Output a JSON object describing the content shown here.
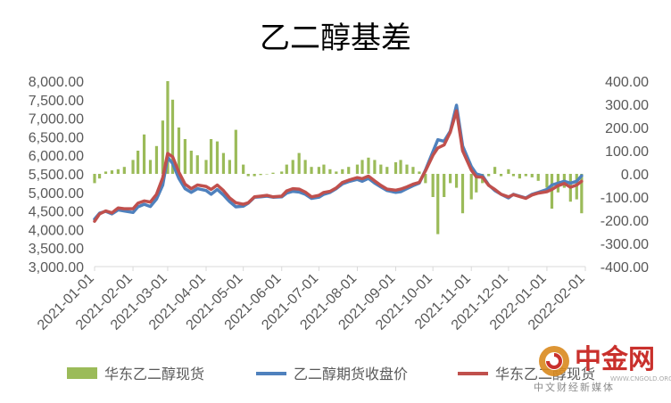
{
  "chart_data": {
    "type": "bar+line",
    "title": "乙二醇基差",
    "x_ticks": [
      "2021-01-01",
      "2021-02-01",
      "2021-03-01",
      "2021-04-01",
      "2021-05-01",
      "2021-06-01",
      "2021-07-01",
      "2021-08-01",
      "2021-09-01",
      "2021-10-01",
      "2021-11-01",
      "2021-12-01",
      "2022-01-01",
      "2022-02-01"
    ],
    "x_range": [
      "2021-01-01",
      "2022-02-01"
    ],
    "y_left": {
      "ticks": [
        "8,000.00",
        "7,500.00",
        "7,000.00",
        "6,500.00",
        "6,000.00",
        "5,500.00",
        "5,000.00",
        "4,500.00",
        "4,000.00",
        "3,500.00",
        "3,000.00"
      ],
      "min": 3000,
      "max": 8000
    },
    "y_right": {
      "ticks": [
        "400.00",
        "300.00",
        "200.00",
        "100.00",
        "0.00",
        "-100.00",
        "-200.00",
        "-300.00",
        "-400.00"
      ],
      "min": -400,
      "max": 400
    },
    "series": [
      {
        "name": "华东乙二醇现货",
        "type": "bar",
        "axis": "right",
        "color": "#9bbb59",
        "points": [
          [
            "2021-01-01",
            -40
          ],
          [
            "2021-01-05",
            -20
          ],
          [
            "2021-01-10",
            10
          ],
          [
            "2021-01-15",
            15
          ],
          [
            "2021-01-20",
            20
          ],
          [
            "2021-01-25",
            30
          ],
          [
            "2021-02-01",
            60
          ],
          [
            "2021-02-05",
            100
          ],
          [
            "2021-02-10",
            170
          ],
          [
            "2021-02-15",
            60
          ],
          [
            "2021-02-20",
            120
          ],
          [
            "2021-02-25",
            230
          ],
          [
            "2021-03-01",
            400
          ],
          [
            "2021-03-05",
            320
          ],
          [
            "2021-03-10",
            200
          ],
          [
            "2021-03-15",
            150
          ],
          [
            "2021-03-20",
            100
          ],
          [
            "2021-03-25",
            80
          ],
          [
            "2021-04-01",
            60
          ],
          [
            "2021-04-05",
            150
          ],
          [
            "2021-04-10",
            140
          ],
          [
            "2021-04-15",
            90
          ],
          [
            "2021-04-20",
            60
          ],
          [
            "2021-04-25",
            190
          ],
          [
            "2021-05-01",
            40
          ],
          [
            "2021-05-05",
            -10
          ],
          [
            "2021-05-10",
            -10
          ],
          [
            "2021-05-15",
            -5
          ],
          [
            "2021-05-20",
            0
          ],
          [
            "2021-05-25",
            5
          ],
          [
            "2021-06-01",
            10
          ],
          [
            "2021-06-05",
            40
          ],
          [
            "2021-06-10",
            60
          ],
          [
            "2021-06-15",
            90
          ],
          [
            "2021-06-20",
            60
          ],
          [
            "2021-06-25",
            30
          ],
          [
            "2021-07-01",
            30
          ],
          [
            "2021-07-05",
            40
          ],
          [
            "2021-07-10",
            20
          ],
          [
            "2021-07-15",
            10
          ],
          [
            "2021-07-20",
            20
          ],
          [
            "2021-07-25",
            30
          ],
          [
            "2021-08-01",
            40
          ],
          [
            "2021-08-05",
            60
          ],
          [
            "2021-08-10",
            70
          ],
          [
            "2021-08-15",
            60
          ],
          [
            "2021-08-20",
            40
          ],
          [
            "2021-08-25",
            30
          ],
          [
            "2021-09-01",
            50
          ],
          [
            "2021-09-05",
            60
          ],
          [
            "2021-09-10",
            40
          ],
          [
            "2021-09-15",
            30
          ],
          [
            "2021-09-20",
            10
          ],
          [
            "2021-09-25",
            -40
          ],
          [
            "2021-10-01",
            -100
          ],
          [
            "2021-10-05",
            -260
          ],
          [
            "2021-10-10",
            -100
          ],
          [
            "2021-10-15",
            -40
          ],
          [
            "2021-10-20",
            -60
          ],
          [
            "2021-10-25",
            -170
          ],
          [
            "2021-11-01",
            -110
          ],
          [
            "2021-11-05",
            -80
          ],
          [
            "2021-11-10",
            -40
          ],
          [
            "2021-11-15",
            -10
          ],
          [
            "2021-11-20",
            30
          ],
          [
            "2021-11-25",
            -10
          ],
          [
            "2021-12-01",
            20
          ],
          [
            "2021-12-05",
            -10
          ],
          [
            "2021-12-10",
            -20
          ],
          [
            "2021-12-15",
            -10
          ],
          [
            "2021-12-20",
            -15
          ],
          [
            "2021-12-25",
            -30
          ],
          [
            "2022-01-01",
            -60
          ],
          [
            "2022-01-05",
            -150
          ],
          [
            "2022-01-10",
            -80
          ],
          [
            "2022-01-15",
            -60
          ],
          [
            "2022-01-20",
            -120
          ],
          [
            "2022-01-25",
            -110
          ],
          [
            "2022-01-29",
            -170
          ]
        ]
      },
      {
        "name": "乙二醇期货收盘价",
        "type": "line",
        "axis": "left",
        "color": "#4f81bd",
        "points": [
          [
            "2021-01-01",
            4280
          ],
          [
            "2021-01-05",
            4440
          ],
          [
            "2021-01-10",
            4490
          ],
          [
            "2021-01-15",
            4420
          ],
          [
            "2021-01-20",
            4530
          ],
          [
            "2021-01-25",
            4500
          ],
          [
            "2021-02-01",
            4460
          ],
          [
            "2021-02-05",
            4610
          ],
          [
            "2021-02-10",
            4680
          ],
          [
            "2021-02-15",
            4620
          ],
          [
            "2021-02-20",
            4820
          ],
          [
            "2021-02-25",
            5200
          ],
          [
            "2021-03-01",
            5950
          ],
          [
            "2021-03-05",
            5780
          ],
          [
            "2021-03-10",
            5380
          ],
          [
            "2021-03-15",
            5100
          ],
          [
            "2021-03-20",
            5000
          ],
          [
            "2021-03-25",
            5100
          ],
          [
            "2021-04-01",
            5050
          ],
          [
            "2021-04-05",
            4950
          ],
          [
            "2021-04-10",
            5080
          ],
          [
            "2021-04-15",
            4930
          ],
          [
            "2021-04-20",
            4750
          ],
          [
            "2021-04-25",
            4610
          ],
          [
            "2021-05-01",
            4630
          ],
          [
            "2021-05-05",
            4710
          ],
          [
            "2021-05-10",
            4870
          ],
          [
            "2021-05-15",
            4880
          ],
          [
            "2021-05-20",
            4900
          ],
          [
            "2021-05-25",
            4870
          ],
          [
            "2021-06-01",
            4880
          ],
          [
            "2021-06-05",
            4980
          ],
          [
            "2021-06-10",
            5030
          ],
          [
            "2021-06-15",
            5010
          ],
          [
            "2021-06-20",
            4950
          ],
          [
            "2021-06-25",
            4840
          ],
          [
            "2021-07-01",
            4870
          ],
          [
            "2021-07-05",
            4950
          ],
          [
            "2021-07-10",
            5000
          ],
          [
            "2021-07-15",
            5100
          ],
          [
            "2021-07-20",
            5230
          ],
          [
            "2021-07-25",
            5290
          ],
          [
            "2021-08-01",
            5350
          ],
          [
            "2021-08-05",
            5300
          ],
          [
            "2021-08-10",
            5380
          ],
          [
            "2021-08-15",
            5250
          ],
          [
            "2021-08-20",
            5150
          ],
          [
            "2021-08-25",
            5050
          ],
          [
            "2021-09-01",
            5000
          ],
          [
            "2021-09-05",
            5020
          ],
          [
            "2021-09-10",
            5100
          ],
          [
            "2021-09-15",
            5180
          ],
          [
            "2021-09-20",
            5250
          ],
          [
            "2021-09-25",
            5600
          ],
          [
            "2021-10-01",
            6100
          ],
          [
            "2021-10-05",
            6420
          ],
          [
            "2021-10-10",
            6380
          ],
          [
            "2021-10-15",
            6650
          ],
          [
            "2021-10-20",
            7350
          ],
          [
            "2021-10-25",
            6250
          ],
          [
            "2021-11-01",
            5700
          ],
          [
            "2021-11-05",
            5500
          ],
          [
            "2021-11-10",
            5450
          ],
          [
            "2021-11-15",
            5200
          ],
          [
            "2021-11-20",
            5050
          ],
          [
            "2021-11-25",
            4950
          ],
          [
            "2021-12-01",
            4850
          ],
          [
            "2021-12-05",
            4950
          ],
          [
            "2021-12-10",
            4900
          ],
          [
            "2021-12-15",
            4850
          ],
          [
            "2021-12-20",
            4950
          ],
          [
            "2021-12-25",
            5000
          ],
          [
            "2022-01-01",
            5080
          ],
          [
            "2022-01-05",
            5200
          ],
          [
            "2022-01-10",
            5250
          ],
          [
            "2022-01-15",
            5300
          ],
          [
            "2022-01-20",
            5250
          ],
          [
            "2022-01-25",
            5300
          ],
          [
            "2022-01-29",
            5450
          ]
        ]
      },
      {
        "name": "华东乙二醇现货",
        "type": "line",
        "axis": "left",
        "color": "#c0504d",
        "points": [
          [
            "2021-01-01",
            4220
          ],
          [
            "2021-01-05",
            4420
          ],
          [
            "2021-01-10",
            4500
          ],
          [
            "2021-01-15",
            4450
          ],
          [
            "2021-01-20",
            4580
          ],
          [
            "2021-01-25",
            4560
          ],
          [
            "2021-02-01",
            4560
          ],
          [
            "2021-02-05",
            4710
          ],
          [
            "2021-02-10",
            4770
          ],
          [
            "2021-02-15",
            4740
          ],
          [
            "2021-02-20",
            4950
          ],
          [
            "2021-02-25",
            5400
          ],
          [
            "2021-03-01",
            6050
          ],
          [
            "2021-03-05",
            5960
          ],
          [
            "2021-03-10",
            5550
          ],
          [
            "2021-03-15",
            5220
          ],
          [
            "2021-03-20",
            5100
          ],
          [
            "2021-03-25",
            5200
          ],
          [
            "2021-04-01",
            5160
          ],
          [
            "2021-04-05",
            5080
          ],
          [
            "2021-04-10",
            5200
          ],
          [
            "2021-04-15",
            5050
          ],
          [
            "2021-04-20",
            4850
          ],
          [
            "2021-04-25",
            4720
          ],
          [
            "2021-05-01",
            4680
          ],
          [
            "2021-05-05",
            4720
          ],
          [
            "2021-05-10",
            4880
          ],
          [
            "2021-05-15",
            4900
          ],
          [
            "2021-05-20",
            4920
          ],
          [
            "2021-05-25",
            4880
          ],
          [
            "2021-06-01",
            4900
          ],
          [
            "2021-06-05",
            5040
          ],
          [
            "2021-06-10",
            5100
          ],
          [
            "2021-06-15",
            5090
          ],
          [
            "2021-06-20",
            5010
          ],
          [
            "2021-06-25",
            4880
          ],
          [
            "2021-07-01",
            4920
          ],
          [
            "2021-07-05",
            5000
          ],
          [
            "2021-07-10",
            5030
          ],
          [
            "2021-07-15",
            5120
          ],
          [
            "2021-07-20",
            5270
          ],
          [
            "2021-07-25",
            5330
          ],
          [
            "2021-08-01",
            5400
          ],
          [
            "2021-08-05",
            5370
          ],
          [
            "2021-08-10",
            5440
          ],
          [
            "2021-08-15",
            5310
          ],
          [
            "2021-08-20",
            5190
          ],
          [
            "2021-08-25",
            5090
          ],
          [
            "2021-09-01",
            5060
          ],
          [
            "2021-09-05",
            5090
          ],
          [
            "2021-09-10",
            5150
          ],
          [
            "2021-09-15",
            5220
          ],
          [
            "2021-09-20",
            5270
          ],
          [
            "2021-09-25",
            5580
          ],
          [
            "2021-10-01",
            6000
          ],
          [
            "2021-10-05",
            6200
          ],
          [
            "2021-10-10",
            6280
          ],
          [
            "2021-10-15",
            6620
          ],
          [
            "2021-10-20",
            7200
          ],
          [
            "2021-10-25",
            6120
          ],
          [
            "2021-11-01",
            5600
          ],
          [
            "2021-11-05",
            5420
          ],
          [
            "2021-11-10",
            5410
          ],
          [
            "2021-11-15",
            5190
          ],
          [
            "2021-11-20",
            5080
          ],
          [
            "2021-11-25",
            4950
          ],
          [
            "2021-12-01",
            4880
          ],
          [
            "2021-12-05",
            4940
          ],
          [
            "2021-12-10",
            4890
          ],
          [
            "2021-12-15",
            4840
          ],
          [
            "2021-12-20",
            4930
          ],
          [
            "2021-12-25",
            4980
          ],
          [
            "2022-01-01",
            5020
          ],
          [
            "2022-01-05",
            5080
          ],
          [
            "2022-01-10",
            5180
          ],
          [
            "2022-01-15",
            5240
          ],
          [
            "2022-01-20",
            5140
          ],
          [
            "2022-01-25",
            5200
          ],
          [
            "2022-01-29",
            5300
          ]
        ]
      }
    ],
    "legend": {
      "position": "bottom",
      "entries": [
        "华东乙二醇现货",
        "乙二醇期货收盘价",
        "华东乙二醇现货"
      ]
    }
  },
  "watermark": {
    "name": "中金网",
    "tagline": "中文财经新媒体",
    "url": "WWW.CNGOLD.ORG",
    "logo_icon": "cngold-logo-icon"
  }
}
